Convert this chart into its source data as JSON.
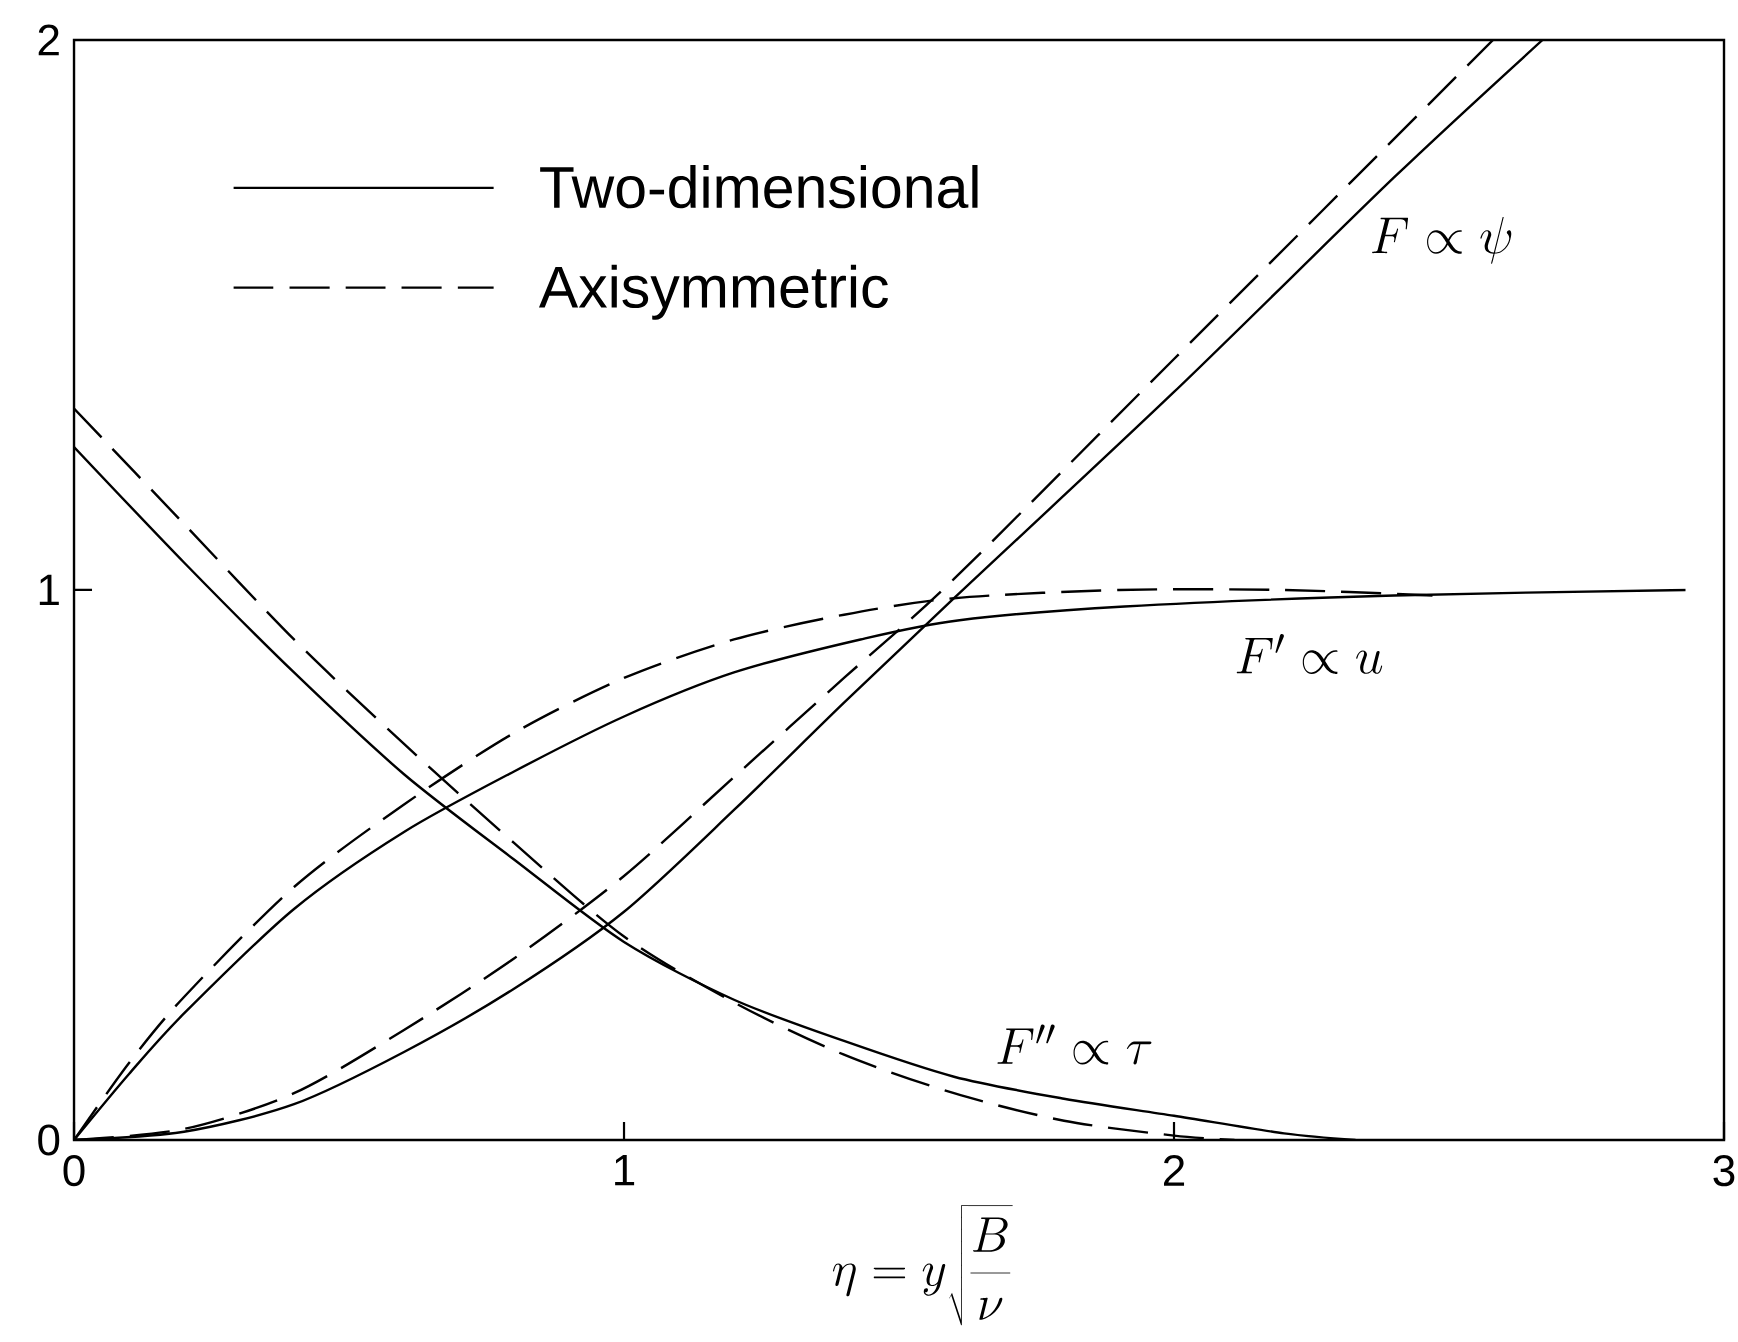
{
  "chart_data": {
    "type": "line",
    "xlabel": "\\eta = y\\sqrt{\\frac{B}{\\nu}}",
    "xlim": [
      0,
      3
    ],
    "ylim": [
      0,
      2
    ],
    "xticks": [
      0,
      1,
      2,
      3
    ],
    "yticks": [
      0,
      1,
      2
    ],
    "legend": "top left",
    "series": [
      {
        "name": "Two-dimensional",
        "color": "#000000",
        "line_style": "solid",
        "x": [
          0,
          0.2,
          0.4,
          0.6,
          0.8,
          1.0,
          1.2,
          1.4,
          1.6,
          2.0,
          2.4,
          2.67
        ],
        "values": [
          0,
          0.015,
          0.065,
          0.16,
          0.275,
          0.415,
          0.6,
          0.795,
          0.985,
          1.36,
          1.75,
          2.0
        ]
      },
      {
        "color": "#000000",
        "line_style": "solid",
        "x": [
          0,
          0.1,
          0.2,
          0.4,
          0.6,
          0.8,
          1.0,
          1.2,
          1.43,
          1.61,
          1.91,
          2.4,
          2.93
        ],
        "values": [
          0,
          0.12,
          0.23,
          0.42,
          0.56,
          0.67,
          0.77,
          0.85,
          0.91,
          0.945,
          0.97,
          0.99,
          1.0
        ]
      },
      {
        "color": "#000000",
        "line_style": "solid",
        "x": [
          0,
          0.2,
          0.4,
          0.6,
          0.8,
          1.0,
          1.2,
          1.4,
          1.6,
          1.8,
          2.0,
          2.2,
          2.33
        ],
        "values": [
          1.26,
          1.05,
          0.85,
          0.665,
          0.51,
          0.36,
          0.255,
          0.18,
          0.115,
          0.075,
          0.044,
          0.012,
          0
        ]
      },
      {
        "name": "Axisymmetric",
        "color": "#000000",
        "line_style": "dashed",
        "x": [
          0,
          0.2,
          0.4,
          0.6,
          0.8,
          1.0,
          1.2,
          1.4,
          1.6,
          2.0,
          2.58
        ],
        "values": [
          0,
          0.02,
          0.085,
          0.2,
          0.33,
          0.48,
          0.66,
          0.84,
          1.02,
          1.42,
          2.0
        ]
      },
      {
        "color": "#000000",
        "line_style": "dashed",
        "x": [
          0,
          0.1,
          0.2,
          0.4,
          0.6,
          0.8,
          1.0,
          1.2,
          1.4,
          1.6,
          1.9,
          2.2,
          2.47
        ],
        "values": [
          0,
          0.14,
          0.26,
          0.46,
          0.61,
          0.74,
          0.84,
          0.91,
          0.955,
          0.985,
          1.0,
          1.0,
          0.99
        ]
      },
      {
        "color": "#000000",
        "line_style": "dashed",
        "x": [
          0,
          0.2,
          0.4,
          0.6,
          0.8,
          1.0,
          1.2,
          1.4,
          1.6,
          1.8,
          2.0,
          2.11
        ],
        "values": [
          1.33,
          1.12,
          0.91,
          0.72,
          0.54,
          0.37,
          0.25,
          0.155,
          0.085,
          0.035,
          0.008,
          0
        ]
      }
    ],
    "annotations": [
      "F \\propto \\psi",
      "F' \\propto u",
      "F'' \\propto \\tau"
    ]
  }
}
